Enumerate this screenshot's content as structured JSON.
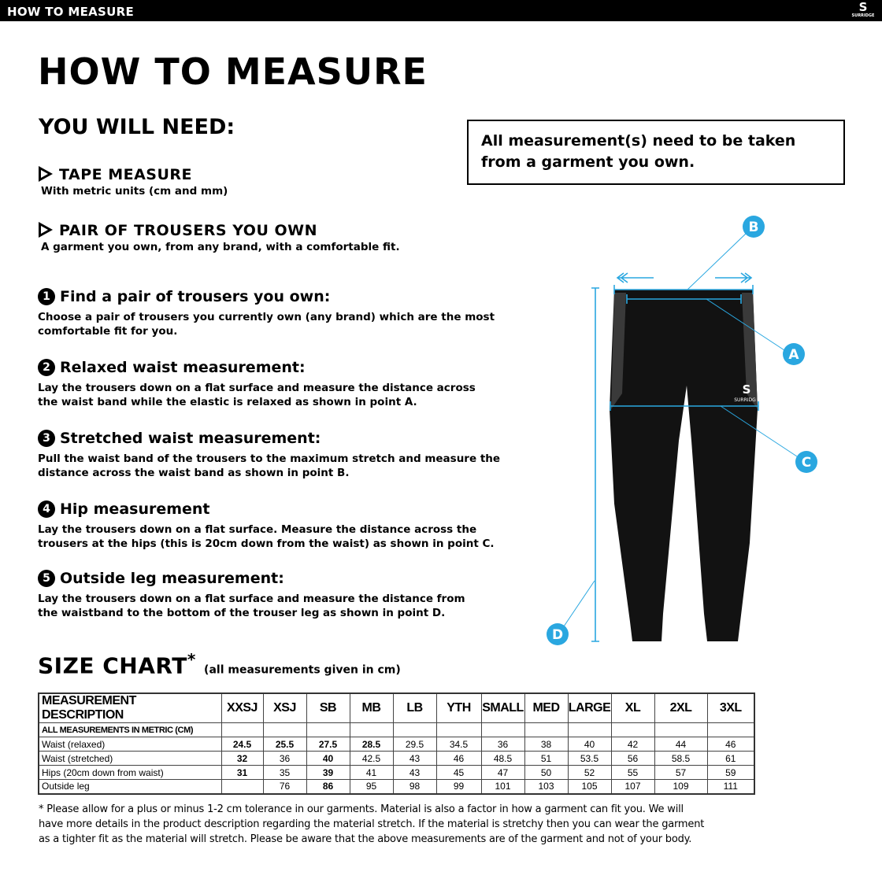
{
  "header": {
    "title": "HOW TO MEASURE",
    "logo_text": "SURRIDGE"
  },
  "page_title": "HOW TO MEASURE",
  "need": {
    "title": "YOU WILL NEED:",
    "items": [
      {
        "label": "TAPE MEASURE",
        "desc": "With metric units (cm and mm)"
      },
      {
        "label": "PAIR OF TROUSERS YOU OWN",
        "desc": "A garment you own, from any brand, with a comfortable fit."
      }
    ]
  },
  "note": "All measurement(s) need to be taken from a garment you own.",
  "steps": [
    {
      "num": "1",
      "title": "Find a pair of trousers you own:",
      "text": "Choose a pair of trousers you currently own (any brand) which are the most comfortable fit for you."
    },
    {
      "num": "2",
      "title": "Relaxed waist measurement:",
      "text": "Lay the trousers down on a flat surface and measure the distance across the waist band while the elastic is relaxed as shown in point A."
    },
    {
      "num": "3",
      "title": "Stretched waist measurement:",
      "text": "Pull the waist band of the trousers to the maximum stretch and measure the distance across the waist band as shown in point B."
    },
    {
      "num": "4",
      "title": "Hip measurement",
      "text": "Lay the trousers down on a flat surface. Measure the distance across the trousers at the hips (this is 20cm down from the waist)  as shown in point C."
    },
    {
      "num": "5",
      "title": "Outside leg measurement:",
      "text": "Lay the trousers down on a flat surface and measure the distance from the waistband to the bottom of the trouser  leg as shown in point D."
    }
  ],
  "diagram": {
    "labels": [
      "A",
      "B",
      "C",
      "D"
    ],
    "accent": "#2aa7e0",
    "garment_logo": "SURRIDGE"
  },
  "size_chart": {
    "title": "SIZE CHART",
    "asterisk": "*",
    "subtitle": "(all measurements given in cm)",
    "columns": [
      "MEASUREMENT DESCRIPTION",
      "XXSJ",
      "XSJ",
      "SB",
      "MB",
      "LB",
      "YTH",
      "SMALL",
      "MED",
      "LARGE",
      "XL",
      "2XL",
      "3XL"
    ],
    "section": "ALL MEASUREMENTS IN METRIC (CM)",
    "rows": [
      {
        "label": "Waist (relaxed)",
        "values": [
          "24.5",
          "25.5",
          "27.5",
          "28.5",
          "29.5",
          "34.5",
          "36",
          "38",
          "40",
          "42",
          "44",
          "46"
        ]
      },
      {
        "label": "Waist (stretched)",
        "values": [
          "32",
          "36",
          "40",
          "42.5",
          "43",
          "46",
          "48.5",
          "51",
          "53.5",
          "56",
          "58.5",
          "61"
        ]
      },
      {
        "label": "Hips (20cm down from waist)",
        "values": [
          "31",
          "35",
          "39",
          "41",
          "43",
          "45",
          "47",
          "50",
          "52",
          "55",
          "57",
          "59"
        ]
      },
      {
        "label": "Outside leg",
        "values": [
          "",
          "76",
          "86",
          "95",
          "98",
          "99",
          "101",
          "103",
          "105",
          "107",
          "109",
          "111"
        ]
      }
    ]
  },
  "footnote": "* Please allow for a plus or minus 1-2 cm tolerance in our garments. Material is also a factor in how a garment can fit you. We will have more details in the product description regarding the material stretch.  If the material is stretchy then you can wear the garment as a tighter fit as the material will stretch.  Please be aware that the above measurements are of the garment and not of your body."
}
